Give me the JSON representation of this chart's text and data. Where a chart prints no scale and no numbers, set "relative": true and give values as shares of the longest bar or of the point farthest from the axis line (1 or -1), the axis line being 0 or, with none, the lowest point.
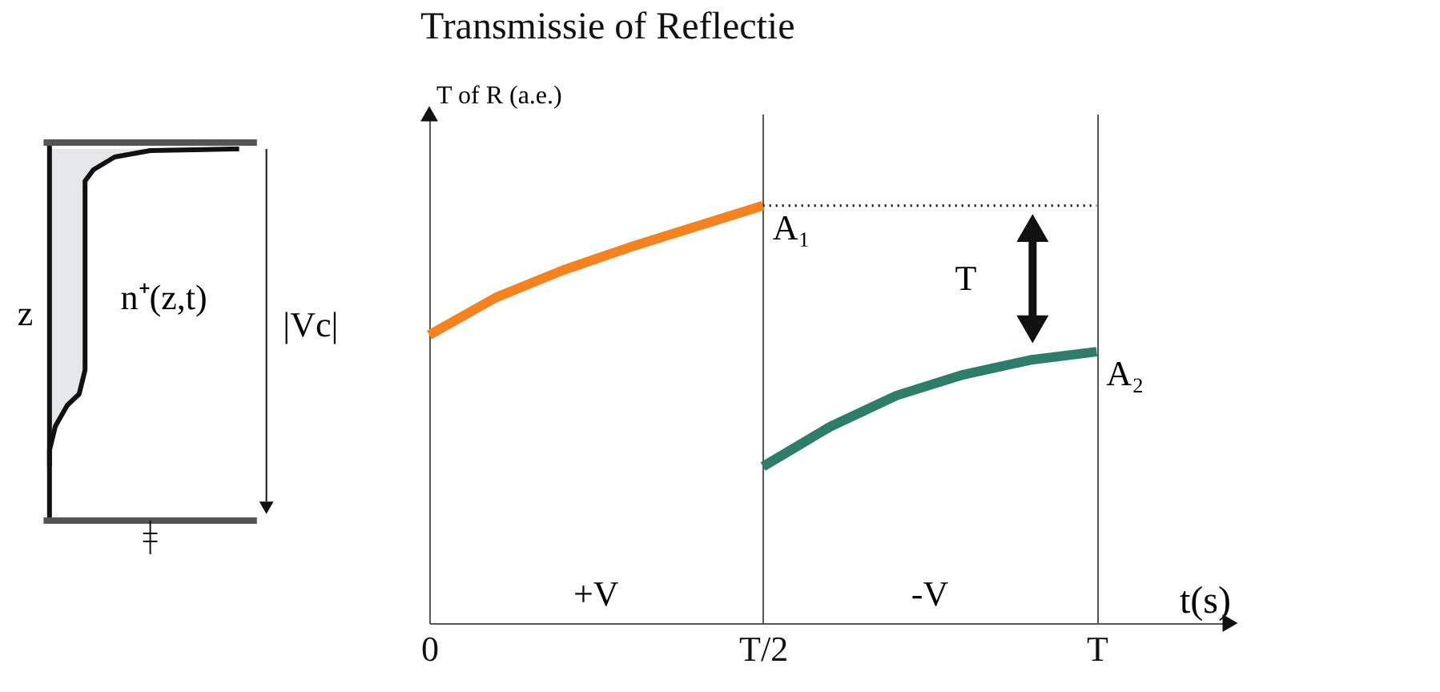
{
  "chart_data": [
    {
      "type": "other",
      "annotations": [
        "z",
        "n⁺(z,t)",
        "|Vc|"
      ]
    },
    {
      "type": "line",
      "title": "Transmissie of Reflectie",
      "ylabel": "T of R (a.e.)",
      "xlabel": "t(s)",
      "relative": true,
      "grid": "x",
      "line_style": "solid",
      "marker": "none",
      "categories": [
        "0",
        null,
        null,
        null,
        null,
        "T/2",
        null,
        null,
        null,
        null,
        "T",
        null,
        null
      ],
      "series": [
        {
          "color": "#f5821f",
          "values": [
            0.69,
            0.78,
            0.845,
            0.9,
            0.95,
            1,
            null,
            null,
            null,
            null,
            null,
            null,
            null
          ]
        },
        {
          "color": "#2e7d6b",
          "values": [
            null,
            null,
            null,
            null,
            null,
            0.375,
            0.47,
            0.545,
            0.595,
            0.63,
            0.65,
            null,
            null
          ]
        }
      ],
      "ref_lines": [
        {
          "axis": "y",
          "value": 1,
          "color": "#000000",
          "line_style": "dotted"
        }
      ],
      "annotations": [
        {
          "text": "A₁",
          "x": "T/2",
          "y": 1
        },
        {
          "text": "A₂",
          "x": "T",
          "y": 0.65
        },
        "T",
        "+V",
        "-V"
      ]
    }
  ]
}
